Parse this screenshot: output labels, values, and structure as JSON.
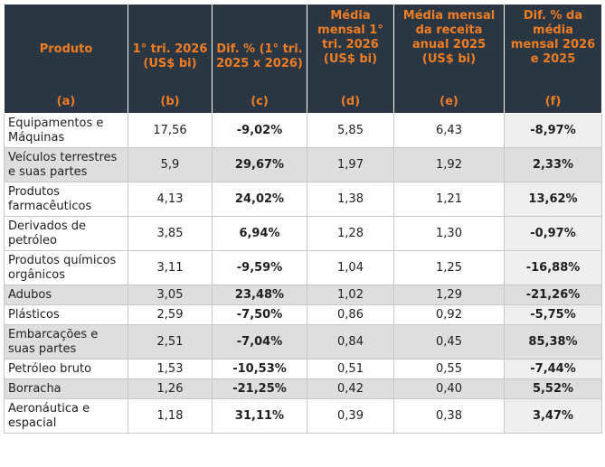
{
  "headers": [
    {
      "label": "Produto",
      "letter": "(a)"
    },
    {
      "label": "1° tri. 2026 (US$ bi)",
      "letter": "(b)"
    },
    {
      "label": "Dif. % (1° tri. 2025 x 2026)",
      "letter": "(c)"
    },
    {
      "label": "Média mensal 1° tri. 2026 (US$ bi)",
      "letter": "(d)"
    },
    {
      "label": "Média mensal da receita anual 2025 (US$ bi)",
      "letter": "(e)"
    },
    {
      "label": "Dif. % da média mensal 2026 e 2025",
      "letter": "(f)"
    }
  ],
  "rows": [
    {
      "produto": "Equipamentos e Máquinas",
      "b": "17,56",
      "c": "-9,02%",
      "d": "5,85",
      "e": "6,43",
      "f": "-8,97%"
    },
    {
      "produto": "Veículos terrestres e suas partes",
      "b": "5,9",
      "c": "29,67%",
      "d": "1,97",
      "e": "1,92",
      "f": "2,33%"
    },
    {
      "produto": "Produtos farmacêuticos",
      "b": "4,13",
      "c": "24,02%",
      "d": "1,38",
      "e": "1,21",
      "f": "13,62%"
    },
    {
      "produto": "Derivados de petróleo",
      "b": "3,85",
      "c": "6,94%",
      "d": "1,28",
      "e": "1,30",
      "f": "-0,97%"
    },
    {
      "produto": "Produtos químicos orgânicos",
      "b": "3,11",
      "c": "-9,59%",
      "d": "1,04",
      "e": "1,25",
      "f": "-16,88%"
    },
    {
      "produto": "Adubos",
      "b": "3,05",
      "c": "23,48%",
      "d": "1,02",
      "e": "1,29",
      "f": "-21,26%"
    },
    {
      "produto": "Plásticos",
      "b": "2,59",
      "c": "-7,50%",
      "d": "0,86",
      "e": "0,92",
      "f": "-5,75%"
    },
    {
      "produto": "Embarcações e suas partes",
      "b": "2,51",
      "c": "-7,04%",
      "d": "0,84",
      "e": "0,45",
      "f": "85,38%"
    },
    {
      "produto": "Petróleo bruto",
      "b": "1,53",
      "c": "-10,53%",
      "d": "0,51",
      "e": "0,55",
      "f": "-7,44%"
    },
    {
      "produto": "Borracha",
      "b": "1,26",
      "c": "-21,25%",
      "d": "0,42",
      "e": "0,40",
      "f": "5,52%"
    },
    {
      "produto": "Aeronáutica e espacial",
      "b": "1,18",
      "c": "31,11%",
      "d": "0,39",
      "e": "0,38",
      "f": "3,47%"
    }
  ]
}
